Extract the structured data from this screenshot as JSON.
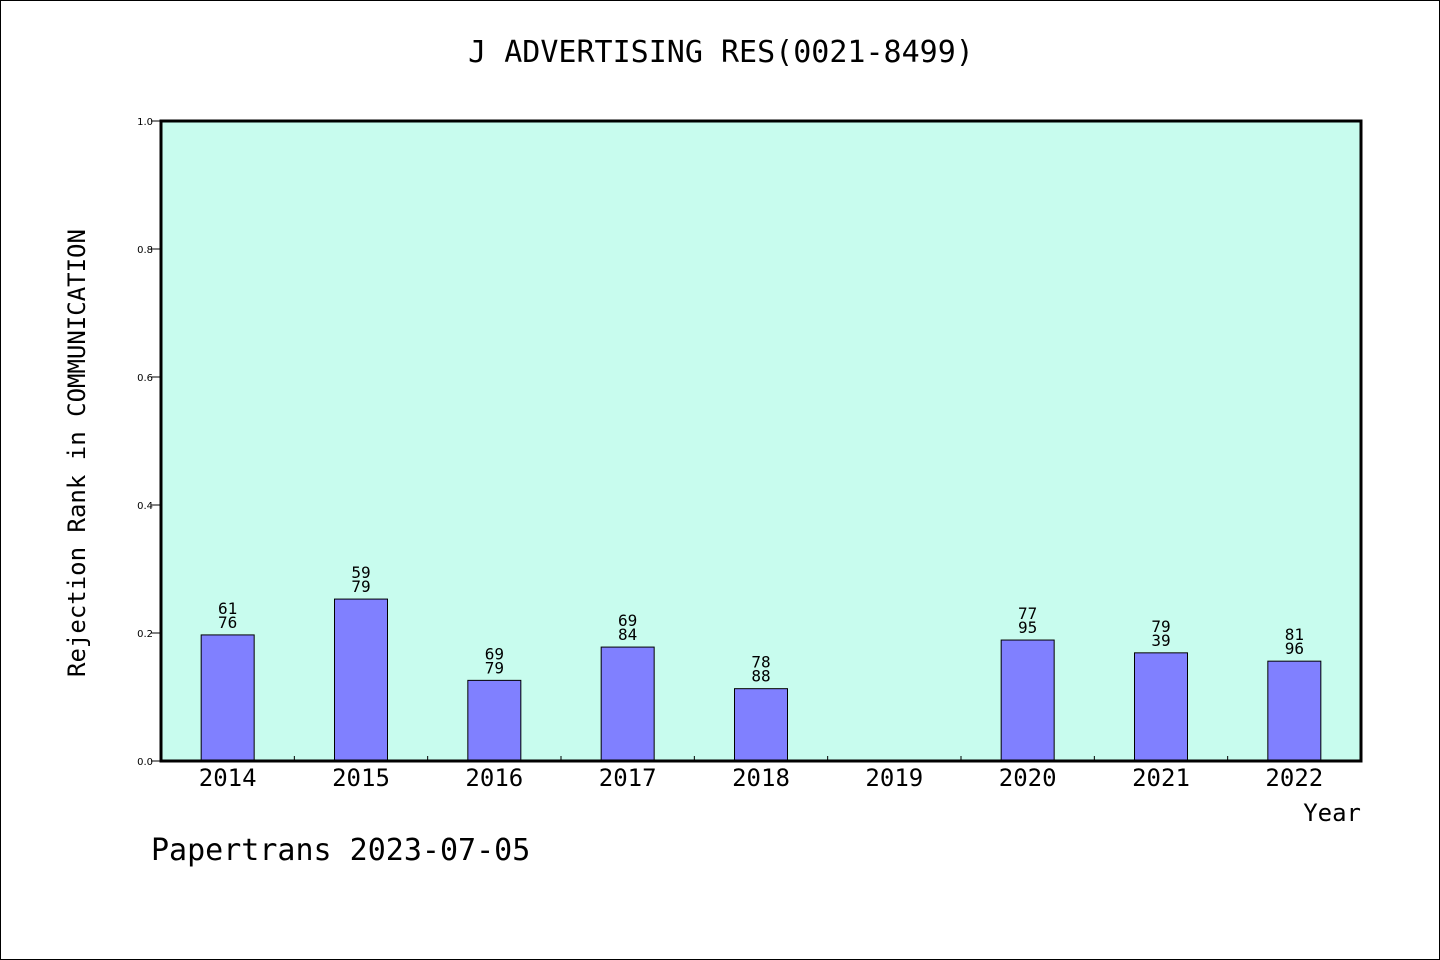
{
  "chart_data": {
    "type": "bar",
    "title": "J ADVERTISING RES(0021-8499)",
    "xlabel": "Year",
    "ylabel": "Rejection Rank in COMMUNICATION",
    "categories": [
      "2014",
      "2015",
      "2016",
      "2017",
      "2018",
      "2019",
      "2020",
      "2021",
      "2022"
    ],
    "values": [
      0.197,
      0.253,
      0.126,
      0.178,
      0.113,
      null,
      0.189,
      0.169,
      0.156
    ],
    "data_labels": [
      [
        "61",
        "76"
      ],
      [
        "59",
        "79"
      ],
      [
        "69",
        "79"
      ],
      [
        "69",
        "84"
      ],
      [
        "78",
        "88"
      ],
      null,
      [
        "77",
        "95"
      ],
      [
        "79",
        "39"
      ],
      [
        "81",
        "96"
      ]
    ],
    "ylim": [
      0,
      1.0
    ],
    "yticks": [
      "0.0",
      "0.2",
      "0.4",
      "0.6",
      "0.8",
      "1.0"
    ],
    "grid": false,
    "colors": {
      "plot_background": "#c8fcee",
      "bar": "#8080ff"
    }
  },
  "footer": "Papertrans 2023-07-05"
}
